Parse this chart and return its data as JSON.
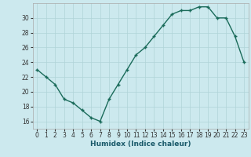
{
  "xlabel": "Humidex (Indice chaleur)",
  "x": [
    0,
    1,
    2,
    3,
    4,
    5,
    6,
    7,
    8,
    9,
    10,
    11,
    12,
    13,
    14,
    15,
    16,
    17,
    18,
    19,
    20,
    21,
    22,
    23
  ],
  "y": [
    23,
    22,
    21,
    19,
    18.5,
    17.5,
    16.5,
    16,
    19,
    21,
    23,
    25,
    26,
    27.5,
    29,
    30.5,
    31,
    31,
    31.5,
    31.5,
    30,
    30,
    27.5,
    24
  ],
  "line_color": "#1a6b5a",
  "marker": "+",
  "marker_size": 3,
  "bg_color": "#cce9ee",
  "grid_color": "#b0d4d8",
  "ylim": [
    15.0,
    32.0
  ],
  "yticks": [
    16,
    18,
    20,
    22,
    24,
    26,
    28,
    30
  ],
  "xlim": [
    -0.5,
    23.5
  ],
  "xticks": [
    0,
    1,
    2,
    3,
    4,
    5,
    6,
    7,
    8,
    9,
    10,
    11,
    12,
    13,
    14,
    15,
    16,
    17,
    18,
    19,
    20,
    21,
    22,
    23
  ],
  "tick_fontsize": 5.5,
  "label_fontsize": 6.5,
  "line_width": 1.0
}
